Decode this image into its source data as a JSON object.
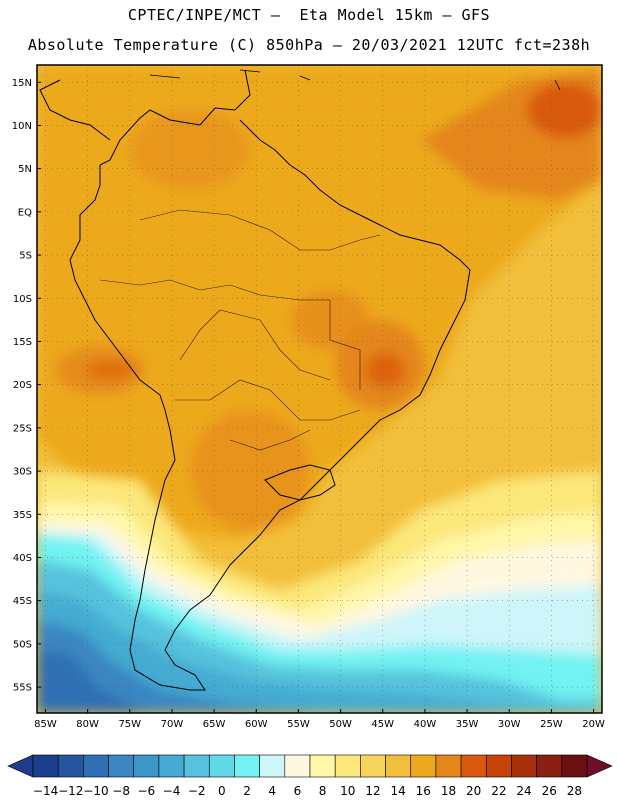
{
  "header": {
    "line1": "CPTEC/INPE/MCT –  Eta Model 15km – GFS",
    "line2": "Absolute Temperature (C) 850hPa – 20/03/2021 12UTC fct=238h"
  },
  "map": {
    "lat_labels": [
      "15N",
      "10N",
      "5N",
      "EQ",
      "5S",
      "10S",
      "15S",
      "20S",
      "25S",
      "30S",
      "35S",
      "40S",
      "45S",
      "50S",
      "55S"
    ],
    "lat_values": [
      15,
      10,
      5,
      0,
      -5,
      -10,
      -15,
      -20,
      -25,
      -30,
      -35,
      -40,
      -45,
      -50,
      -55
    ],
    "lon_labels": [
      "85W",
      "80W",
      "75W",
      "70W",
      "65W",
      "60W",
      "55W",
      "50W",
      "45W",
      "40W",
      "35W",
      "30W",
      "25W",
      "20W"
    ],
    "lon_values": [
      -85,
      -80,
      -75,
      -70,
      -65,
      -60,
      -55,
      -50,
      -45,
      -40,
      -35,
      -30,
      -25,
      -20
    ],
    "lat_range": [
      -58,
      17
    ],
    "lon_range": [
      -86,
      -19
    ]
  },
  "colorbar": {
    "labels": [
      "-14",
      "-12",
      "-10",
      "-8",
      "-6",
      "-4",
      "-2",
      "0",
      "2",
      "4",
      "6",
      "8",
      "10",
      "12",
      "14",
      "16",
      "18",
      "20",
      "22",
      "24",
      "26",
      "28"
    ],
    "colors": [
      "#1a3f8f",
      "#24559f",
      "#2f6fb3",
      "#3a86c2",
      "#3b97c9",
      "#45abd2",
      "#56c2dd",
      "#5fd9e8",
      "#72f2f2",
      "#cdf5fa",
      "#fff8e1",
      "#fff7a8",
      "#fbe77a",
      "#f7d45c",
      "#f2bf3c",
      "#eda91c",
      "#e4861a",
      "#d95a0c",
      "#c64308",
      "#a8300a",
      "#8a1e10",
      "#6b1010"
    ],
    "low_color": "#1e3d8c",
    "high_color": "#6e0f2a"
  },
  "fill_colors": {
    "ocean_south": "#2f6fb3",
    "ocean_south_mid": "#45abd2",
    "cyan_band": "#72f2f2",
    "pale_cyan": "#cdf5fa",
    "cream": "#fff8e1",
    "yellow": "#fbe77a",
    "gold": "#f2bf3c",
    "orange_main": "#eda91c",
    "orange_dark": "#e4861a",
    "orange_hot": "#d95a0c"
  }
}
